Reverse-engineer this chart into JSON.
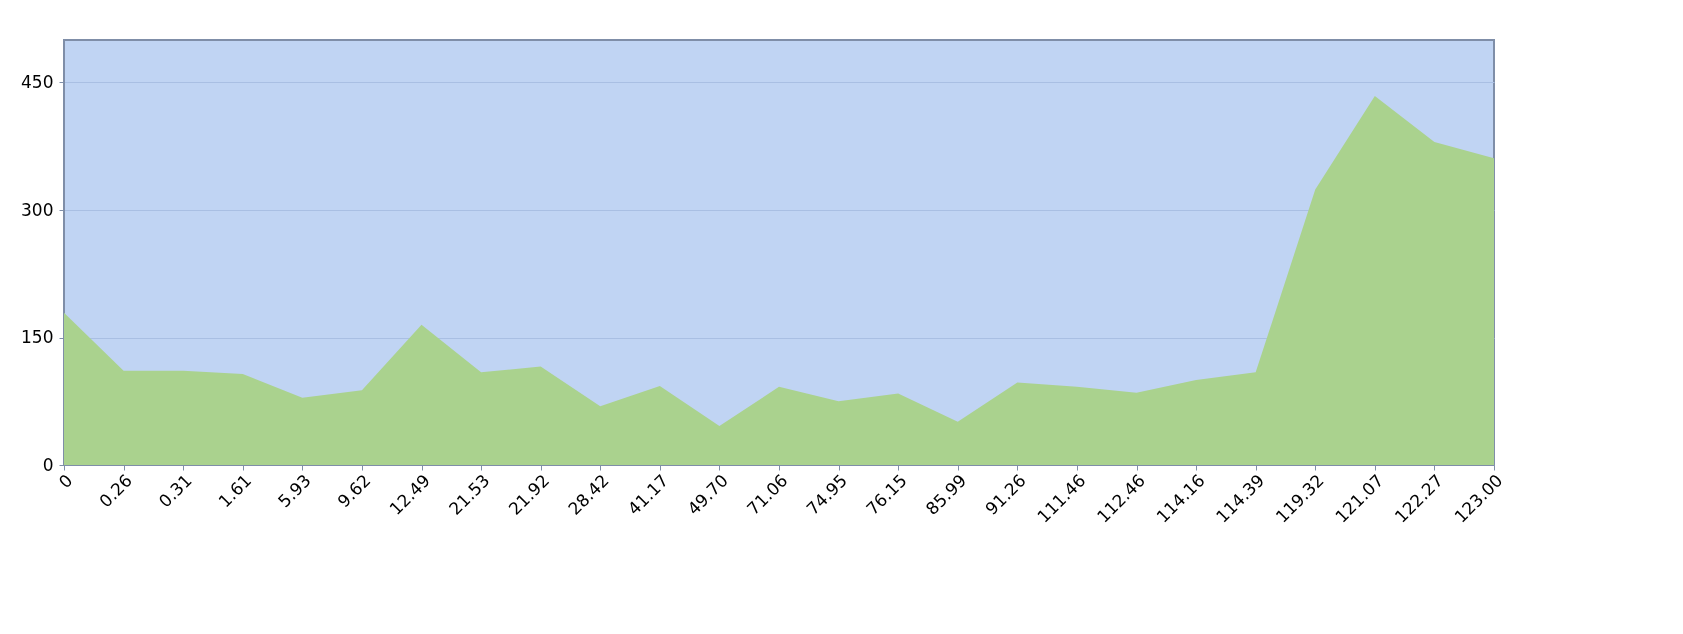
{
  "chart_data": {
    "type": "area",
    "categories": [
      "0",
      "0.26",
      "0.31",
      "1.61",
      "5.93",
      "9.62",
      "12.49",
      "21.53",
      "21.92",
      "28.42",
      "41.17",
      "49.70",
      "71.06",
      "74.95",
      "76.15",
      "85.99",
      "91.26",
      "111.46",
      "112.46",
      "114.16",
      "114.39",
      "119.32",
      "121.07",
      "122.27",
      "123.00"
    ],
    "series": [
      {
        "color": "#aad28e",
        "values": [
          179,
          111,
          111,
          107,
          79,
          88,
          165,
          109,
          116,
          69,
          93,
          46,
          92,
          75,
          84,
          51,
          97,
          92,
          85,
          100,
          109,
          324,
          434,
          380,
          361
        ]
      }
    ],
    "ylim": [
      0,
      500
    ],
    "yticks": [
      0,
      150,
      300,
      450
    ],
    "grid": "y"
  }
}
